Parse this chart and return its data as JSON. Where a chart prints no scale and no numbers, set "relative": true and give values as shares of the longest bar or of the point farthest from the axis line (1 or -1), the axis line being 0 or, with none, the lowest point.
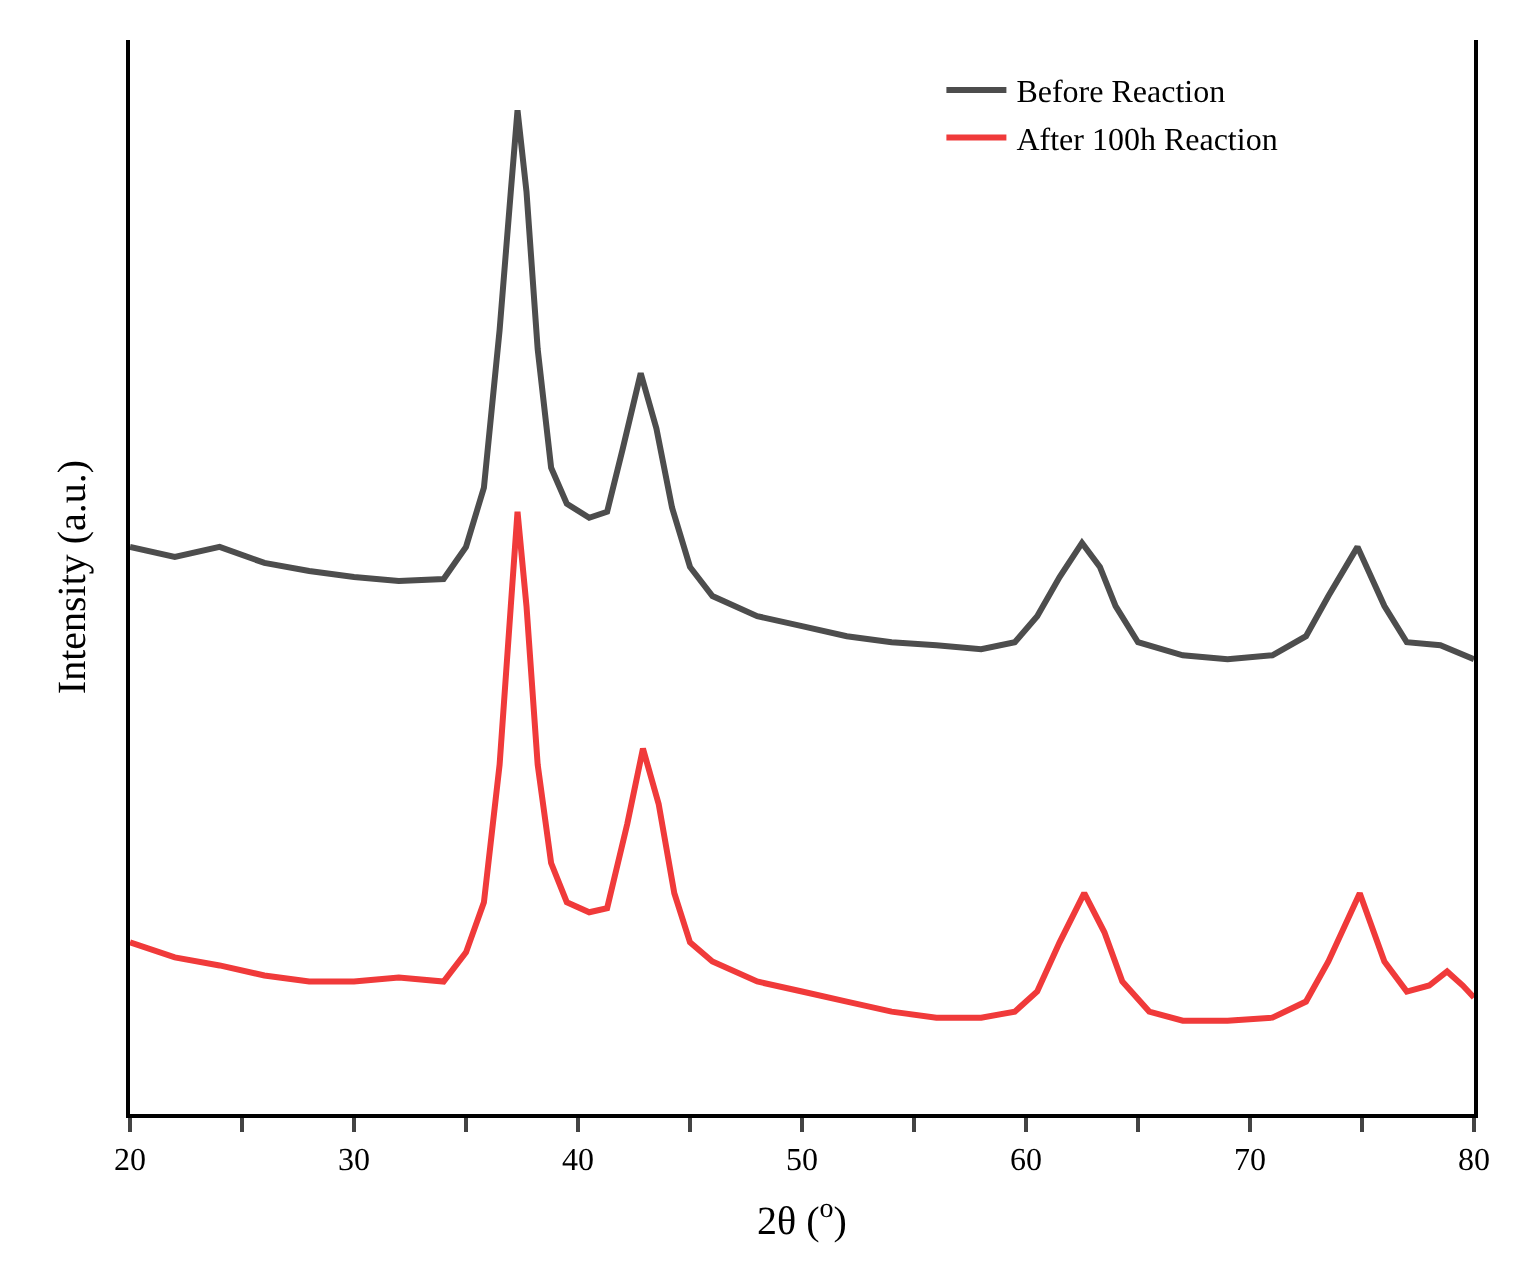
{
  "chart_data": {
    "type": "line",
    "relative": true,
    "xlabel": "2θ ($^{o}$)",
    "ylabel": "Intensity (a.u.)",
    "legend": "top right",
    "marker": "none",
    "line_style": "solid",
    "xlim": [
      20,
      80
    ],
    "xticks": [
      20,
      {
        "value": 25,
        "label": null
      },
      30,
      {
        "value": 35,
        "label": null
      },
      40,
      {
        "value": 45,
        "label": null
      },
      50,
      {
        "value": 55,
        "label": null
      },
      60,
      {
        "value": 65,
        "label": null
      },
      70,
      {
        "value": 75,
        "label": null
      },
      80
    ],
    "x": [
      20,
      22,
      24,
      26,
      28,
      30,
      32,
      34,
      35,
      35.8,
      36.5,
      37.0,
      37.3,
      37.7,
      38.2,
      38.8,
      39.5,
      40.5,
      41.3,
      42.0,
      42.8,
      43.5,
      44.2,
      45,
      46,
      48,
      50,
      52,
      54,
      56,
      58,
      59.5,
      60.5,
      61.5,
      62.5,
      63.3,
      64,
      65,
      67,
      69,
      71,
      72.5,
      73.5,
      74.8,
      76,
      77,
      78.5,
      80
    ],
    "series": [
      {
        "name": "Before Reaction",
        "color": "#4d4d4d",
        "values": [
          0.565,
          0.555,
          0.565,
          0.549,
          0.541,
          0.535,
          0.531,
          0.533,
          0.565,
          0.624,
          0.781,
          0.919,
          1.0,
          0.919,
          0.762,
          0.644,
          0.608,
          0.594,
          0.6,
          0.663,
          0.738,
          0.683,
          0.604,
          0.545,
          0.516,
          0.496,
          0.486,
          0.476,
          0.47,
          0.467,
          0.463,
          0.47,
          0.496,
          0.535,
          0.569,
          0.545,
          0.506,
          0.47,
          0.457,
          0.453,
          0.457,
          0.476,
          0.516,
          0.565,
          0.506,
          0.47,
          0.467,
          0.453
        ]
      },
      {
        "name": "After 100h Reaction",
        "color": "#f03a3a",
        "x": [
          20,
          22,
          24,
          26,
          28,
          30,
          32,
          34,
          35,
          35.8,
          36.5,
          37.0,
          37.3,
          37.7,
          38.2,
          38.8,
          39.5,
          40.5,
          41.3,
          42.2,
          42.9,
          43.6,
          44.3,
          45,
          46,
          48,
          50,
          52,
          54,
          56,
          58,
          59.5,
          60.5,
          61.5,
          62.6,
          63.5,
          64.3,
          65.5,
          67,
          69,
          71,
          72.5,
          73.5,
          74.9,
          76,
          77,
          78,
          78.8,
          79.5,
          80
        ],
        "values": [
          0.171,
          0.156,
          0.148,
          0.138,
          0.132,
          0.132,
          0.136,
          0.132,
          0.161,
          0.211,
          0.348,
          0.506,
          0.6,
          0.506,
          0.348,
          0.25,
          0.211,
          0.201,
          0.205,
          0.289,
          0.364,
          0.309,
          0.22,
          0.171,
          0.152,
          0.132,
          0.122,
          0.112,
          0.102,
          0.096,
          0.096,
          0.102,
          0.122,
          0.171,
          0.22,
          0.181,
          0.132,
          0.102,
          0.093,
          0.093,
          0.096,
          0.112,
          0.152,
          0.22,
          0.152,
          0.122,
          0.128,
          0.142,
          0.128,
          0.116
        ]
      }
    ]
  }
}
